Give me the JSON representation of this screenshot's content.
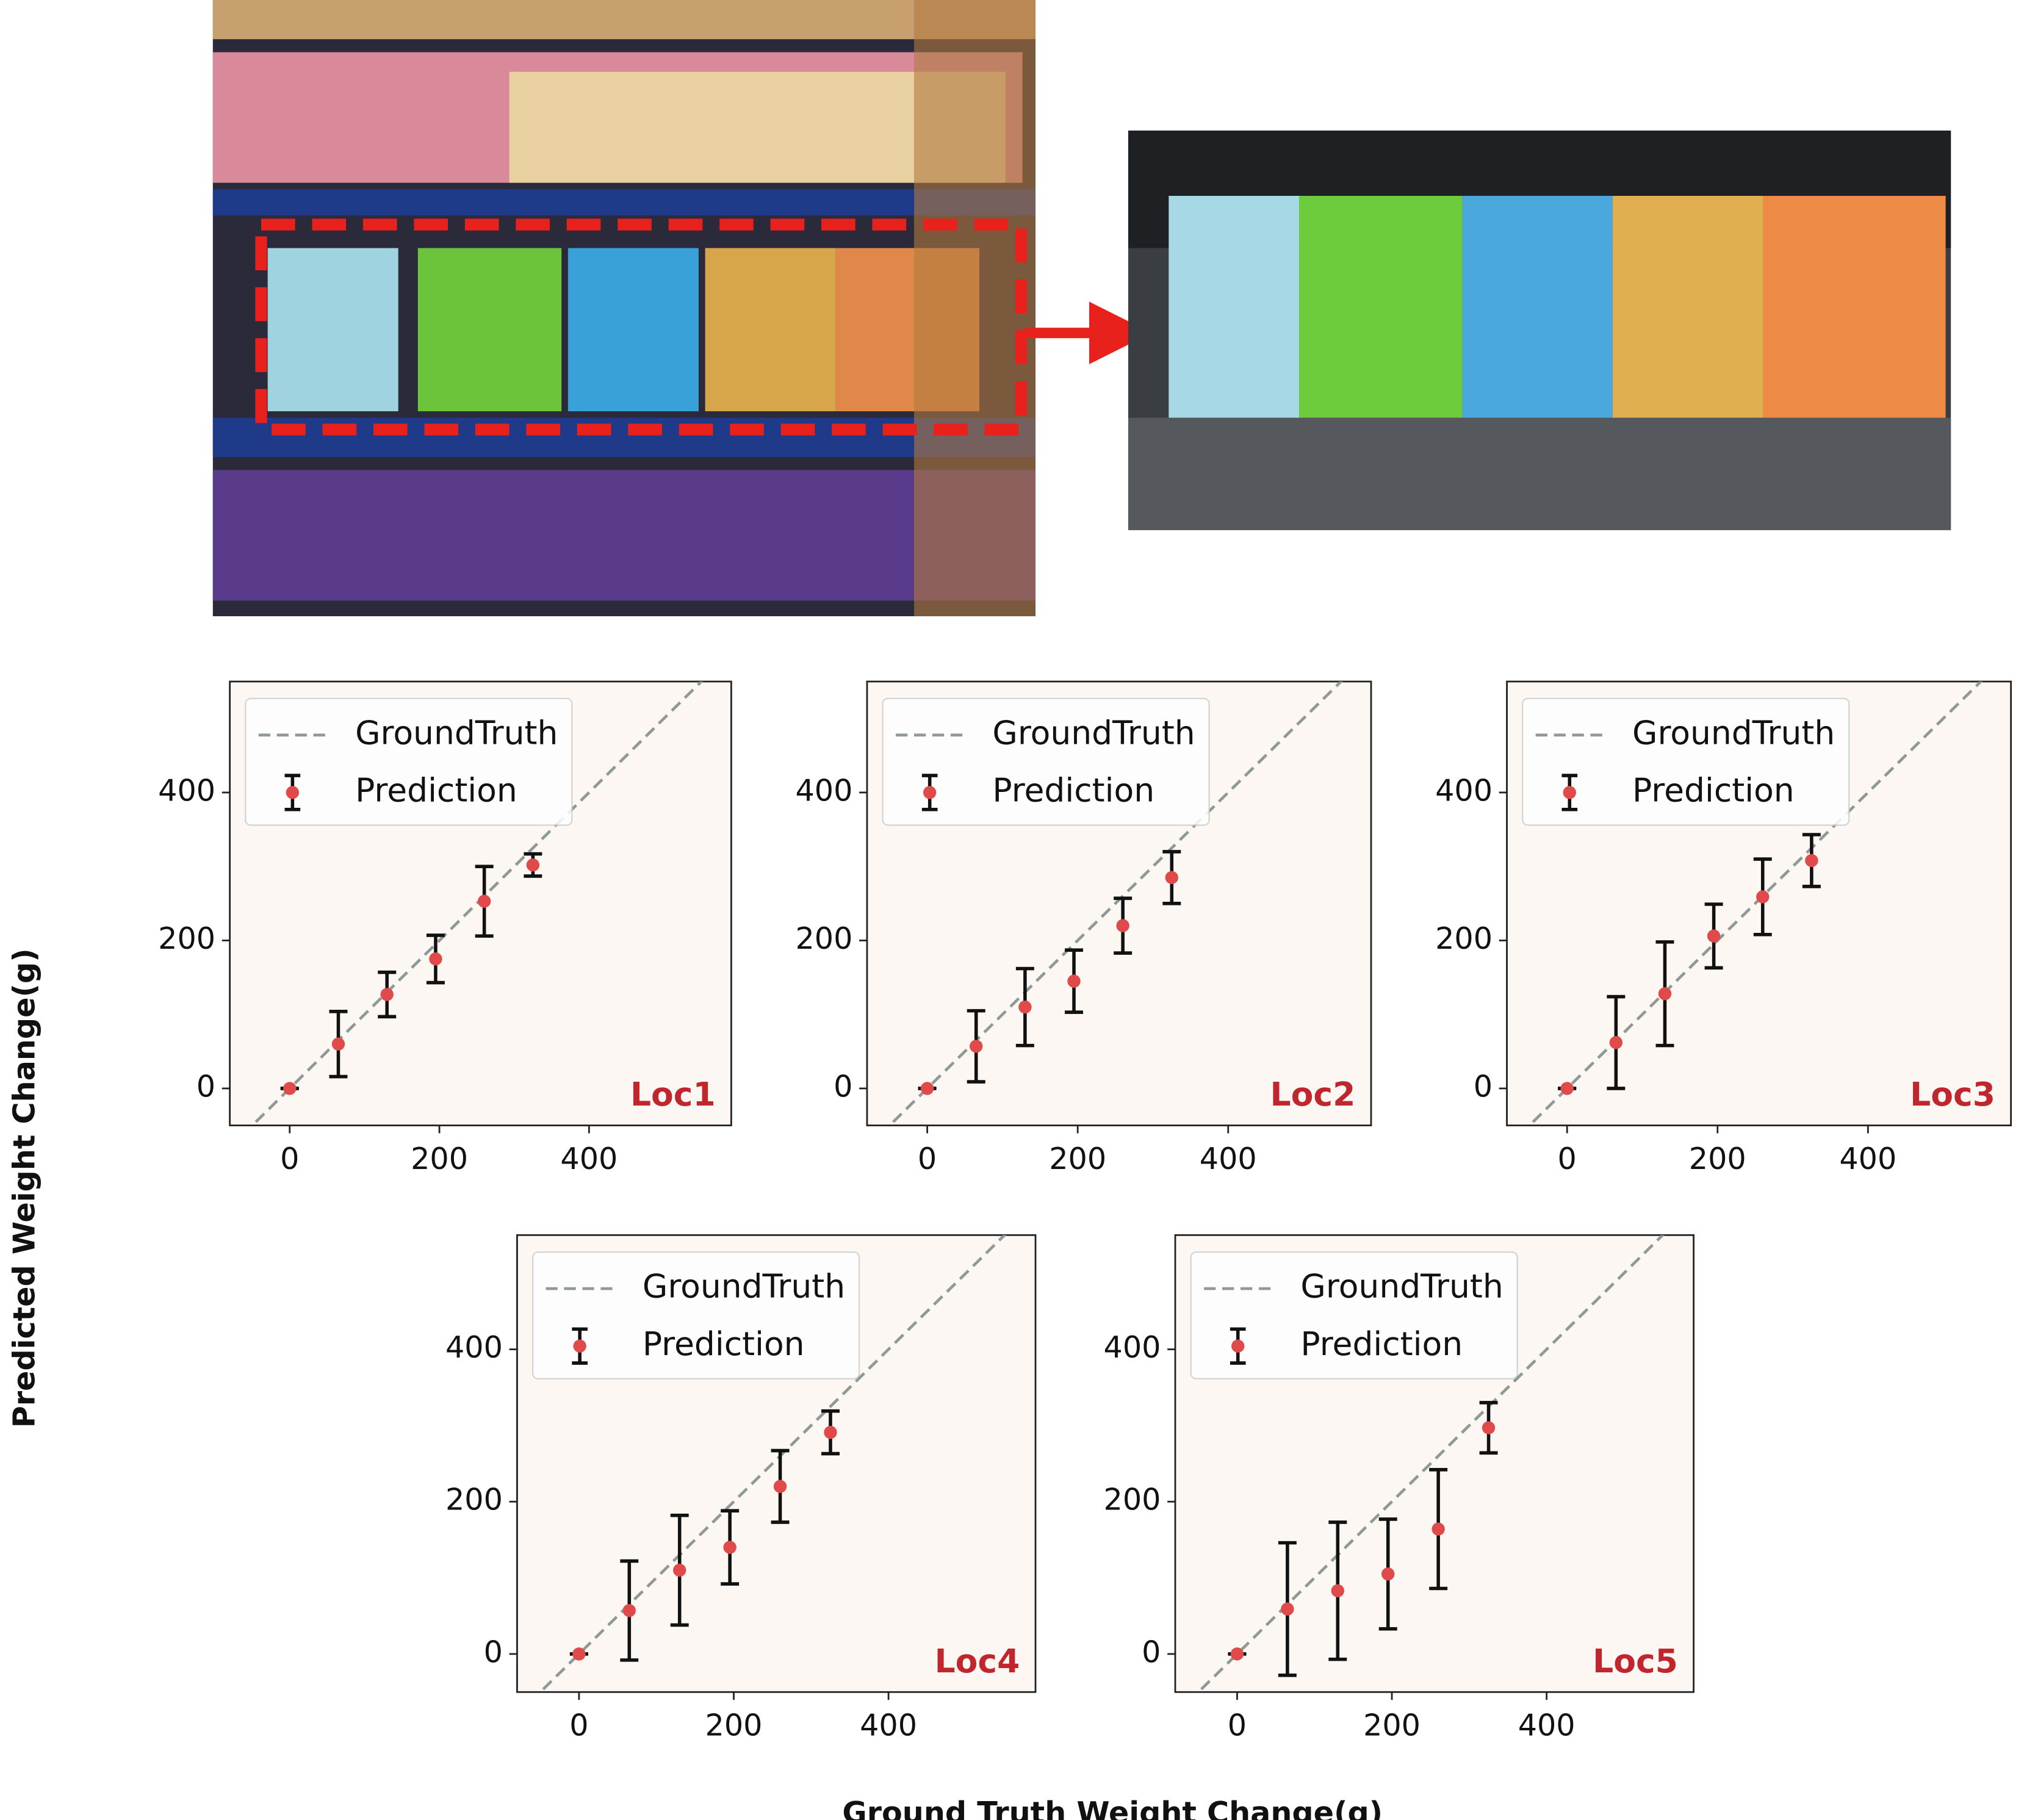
{
  "axis_labels": {
    "x": "Ground Truth Weight Change(g)",
    "y": "Predicted Weight Change(g)"
  },
  "chart_data": [
    {
      "type": "scatter",
      "annotation": "Loc1",
      "xlim": [
        -80,
        590
      ],
      "ylim": [
        -50,
        550
      ],
      "xticks": [
        0,
        200,
        400
      ],
      "yticks": [
        0,
        200,
        400
      ],
      "legend": "upper left",
      "series": [
        {
          "name": "GroundTruth",
          "color": "#8f9a96",
          "style": "dashed"
        },
        {
          "name": "Prediction",
          "color": "#e04a4a",
          "x": [
            0,
            65,
            130,
            195,
            260,
            325
          ],
          "values": [
            0,
            60,
            127,
            175,
            253,
            302
          ],
          "errors": [
            0,
            44,
            30,
            32,
            47,
            15
          ]
        }
      ]
    },
    {
      "type": "scatter",
      "annotation": "Loc2",
      "xlim": [
        -80,
        590
      ],
      "ylim": [
        -50,
        550
      ],
      "xticks": [
        0,
        200,
        400
      ],
      "yticks": [
        0,
        200,
        400
      ],
      "legend": "upper left",
      "series": [
        {
          "name": "GroundTruth",
          "color": "#8f9a96",
          "style": "dashed"
        },
        {
          "name": "Prediction",
          "color": "#e04a4a",
          "x": [
            0,
            65,
            130,
            195,
            260,
            325
          ],
          "values": [
            0,
            57,
            110,
            145,
            220,
            285
          ],
          "errors": [
            0,
            48,
            52,
            42,
            37,
            35
          ]
        }
      ]
    },
    {
      "type": "scatter",
      "annotation": "Loc3",
      "xlim": [
        -80,
        590
      ],
      "ylim": [
        -50,
        550
      ],
      "xticks": [
        0,
        200,
        400
      ],
      "yticks": [
        0,
        200,
        400
      ],
      "legend": "upper left",
      "series": [
        {
          "name": "GroundTruth",
          "color": "#8f9a96",
          "style": "dashed"
        },
        {
          "name": "Prediction",
          "color": "#e04a4a",
          "x": [
            0,
            65,
            130,
            195,
            260,
            325
          ],
          "values": [
            0,
            62,
            128,
            206,
            259,
            308
          ],
          "errors": [
            0,
            62,
            70,
            43,
            51,
            35
          ]
        }
      ]
    },
    {
      "type": "scatter",
      "annotation": "Loc4",
      "xlim": [
        -80,
        590
      ],
      "ylim": [
        -50,
        550
      ],
      "xticks": [
        0,
        200,
        400
      ],
      "yticks": [
        0,
        200,
        400
      ],
      "legend": "upper left",
      "series": [
        {
          "name": "GroundTruth",
          "color": "#8f9a96",
          "style": "dashed"
        },
        {
          "name": "Prediction",
          "color": "#e04a4a",
          "x": [
            0,
            65,
            130,
            195,
            260,
            325
          ],
          "values": [
            0,
            57,
            110,
            140,
            220,
            291
          ],
          "errors": [
            0,
            65,
            72,
            48,
            47,
            28
          ]
        }
      ]
    },
    {
      "type": "scatter",
      "annotation": "Loc5",
      "xlim": [
        -80,
        590
      ],
      "ylim": [
        -50,
        550
      ],
      "xticks": [
        0,
        200,
        400
      ],
      "yticks": [
        0,
        200,
        400
      ],
      "legend": "upper left",
      "series": [
        {
          "name": "GroundTruth",
          "color": "#8f9a96",
          "style": "dashed"
        },
        {
          "name": "Prediction",
          "color": "#e04a4a",
          "x": [
            0,
            65,
            130,
            195,
            260,
            325
          ],
          "values": [
            0,
            59,
            83,
            105,
            164,
            297
          ],
          "errors": [
            0,
            87,
            90,
            72,
            78,
            33
          ]
        }
      ]
    }
  ]
}
